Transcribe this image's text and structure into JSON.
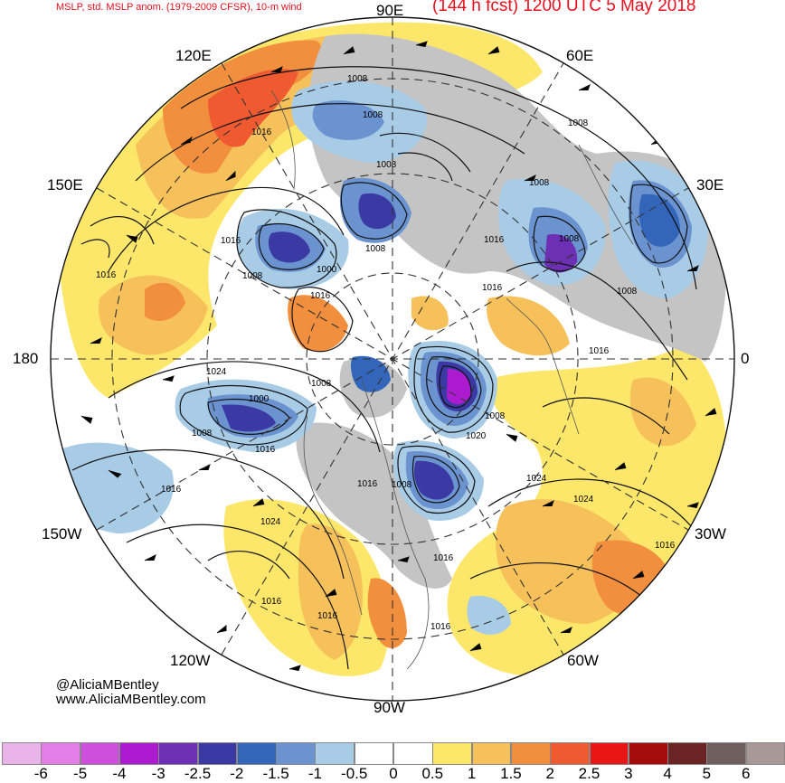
{
  "header": {
    "title_left": "MSLP, std. MSLP anom. (1979-2009 CFSR), 10-m wind",
    "title_right": "(144 h fcst) 1200 UTC 5 May 2018"
  },
  "longitude_labels": {
    "e90": "90E",
    "e60": "60E",
    "e120": "120E",
    "e150": "150E",
    "e30": "30E",
    "lon180": "180",
    "lon0": "0",
    "w150": "150W",
    "w30": "30W",
    "w120": "120W",
    "w60": "60W",
    "w90": "90W"
  },
  "credits": {
    "handle": "@AliciaMBentley",
    "website": "www.AliciaMBentley.com"
  },
  "isobar_labels": [
    "1008",
    "1008",
    "1016",
    "1008",
    "1008",
    "1008",
    "1016",
    "1016",
    "1008",
    "1008",
    "1000",
    "1016",
    "1016",
    "1016",
    "1008",
    "1008",
    "1024",
    "1000",
    "1008",
    "1016",
    "1008",
    "1016",
    "1008",
    "1020",
    "1008",
    "1024",
    "1024",
    "1016",
    "1024",
    "1016",
    "1016",
    "1016",
    "1016",
    "1016",
    "1016"
  ],
  "colors": {
    "title": "#e8101e",
    "land_gray": "#c4c4c4",
    "isobar": "#111111"
  },
  "colorbar": {
    "labels": [
      "-6",
      "-5",
      "-4",
      "-3",
      "-2.5",
      "-2",
      "-1.5",
      "-1",
      "-0.5",
      "0",
      "0.5",
      "1",
      "1.5",
      "2",
      "2.5",
      "3",
      "4",
      "5",
      "6"
    ],
    "colors": [
      "#e8b4ea",
      "#e27ee6",
      "#cf4fdd",
      "#ad1bd0",
      "#6d2fb3",
      "#3b3aa4",
      "#3366bb",
      "#6b93cf",
      "#a8cbe6",
      "#ffffff",
      "#ffffff",
      "#fde76a",
      "#f6c15a",
      "#f28f3e",
      "#ef5a30",
      "#e81616",
      "#a60b0b",
      "#6b2424",
      "#6e5e5e",
      "#a89898"
    ]
  }
}
